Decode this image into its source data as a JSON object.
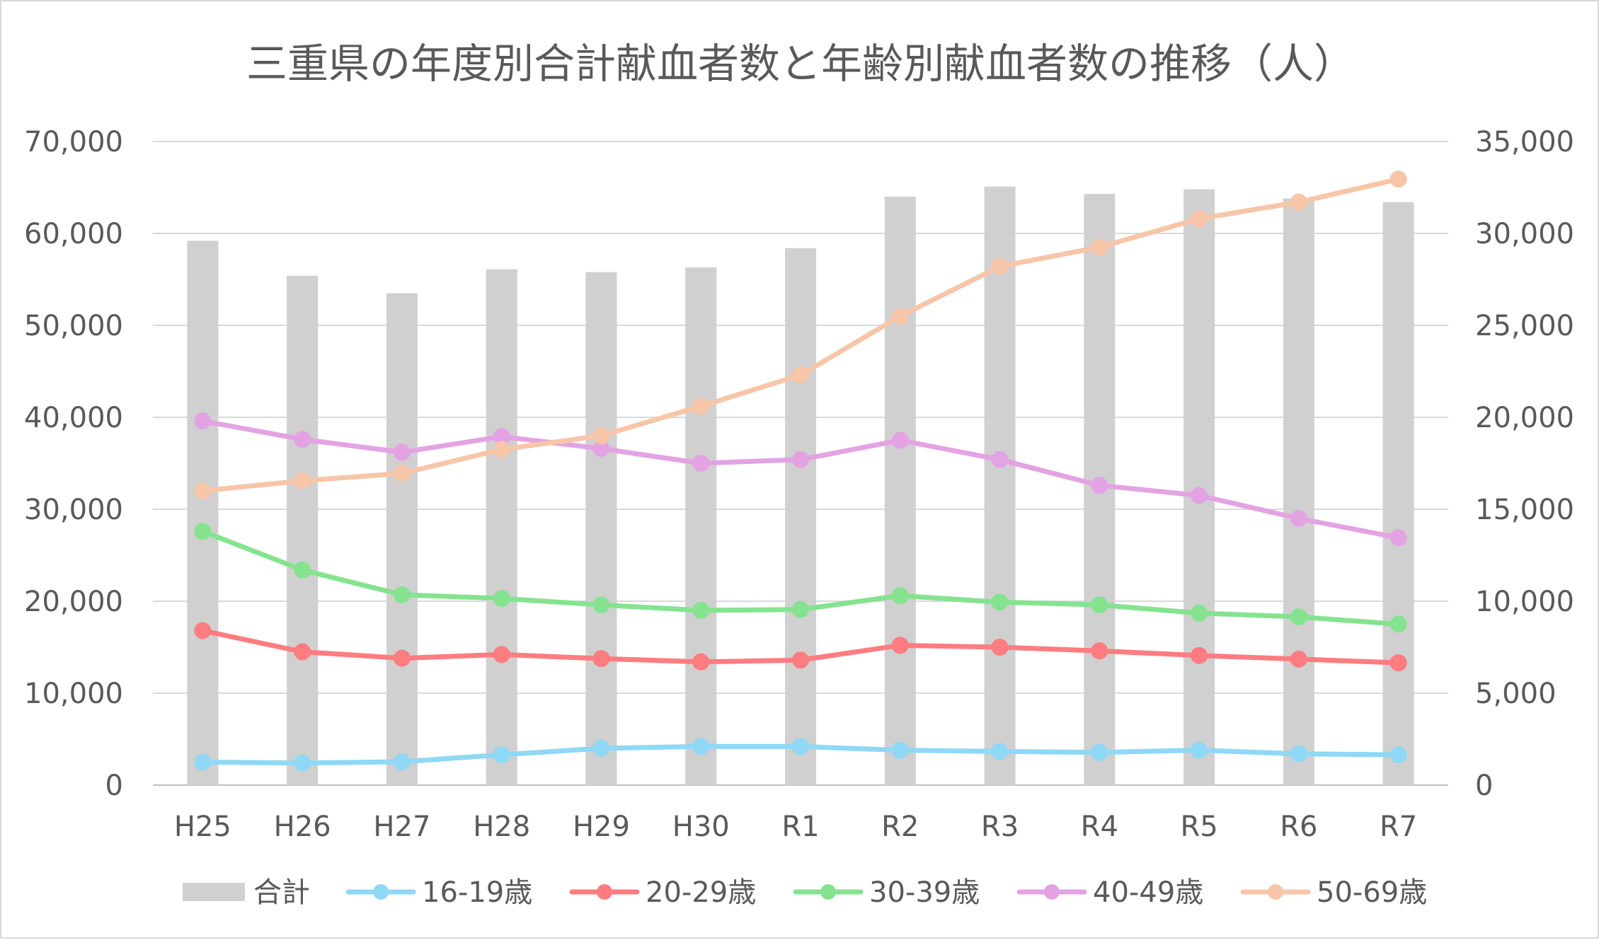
{
  "chart_data": {
    "type": "bar",
    "title": "三重県の年度別合計献血者数と年齢別献血者数の推移（人）",
    "categories": [
      "H25",
      "H26",
      "H27",
      "H28",
      "H29",
      "H30",
      "R1",
      "R2",
      "R3",
      "R4",
      "R5",
      "R6",
      "R7"
    ],
    "left_axis": {
      "ylim": [
        0,
        70000
      ],
      "ticks": [
        "0",
        "10,000",
        "20,000",
        "30,000",
        "40,000",
        "50,000",
        "60,000",
        "70,000"
      ]
    },
    "right_axis": {
      "ylim": [
        0,
        35000
      ],
      "ticks": [
        "0",
        "5,000",
        "10,000",
        "15,000",
        "20,000",
        "25,000",
        "30,000",
        "35,000"
      ]
    },
    "grid": true,
    "legend_position": "bottom",
    "series": [
      {
        "name": "合計",
        "type": "bar",
        "axis": "left",
        "color": "#d0d0d0",
        "values": [
          59200,
          55400,
          53500,
          56100,
          55800,
          56300,
          58400,
          64000,
          65100,
          64300,
          64800,
          63800,
          63400
        ]
      },
      {
        "name": "16-19歳",
        "type": "line",
        "axis": "right",
        "color": "#8fd8f6",
        "values": [
          1250,
          1200,
          1270,
          1650,
          2000,
          2100,
          2100,
          1900,
          1830,
          1780,
          1900,
          1700,
          1650
        ]
      },
      {
        "name": "20-29歳",
        "type": "line",
        "axis": "right",
        "color": "#ff7c80",
        "values": [
          8400,
          7250,
          6900,
          7100,
          6880,
          6700,
          6800,
          7600,
          7500,
          7300,
          7050,
          6850,
          6650
        ]
      },
      {
        "name": "30-39歳",
        "type": "line",
        "axis": "right",
        "color": "#85e38f",
        "values": [
          13800,
          11700,
          10350,
          10150,
          9800,
          9500,
          9550,
          10300,
          9950,
          9800,
          9350,
          9150,
          8750
        ]
      },
      {
        "name": "40-49歳",
        "type": "line",
        "axis": "right",
        "color": "#e3a3e3",
        "values": [
          19800,
          18800,
          18100,
          18950,
          18300,
          17500,
          17700,
          18750,
          17700,
          16300,
          15750,
          14500,
          13450
        ]
      },
      {
        "name": "50-69歳",
        "type": "line",
        "axis": "right",
        "color": "#f7c5a8",
        "values": [
          16000,
          16550,
          16950,
          18250,
          19000,
          20600,
          22300,
          25500,
          28200,
          29250,
          30800,
          31700,
          32950
        ]
      }
    ]
  }
}
